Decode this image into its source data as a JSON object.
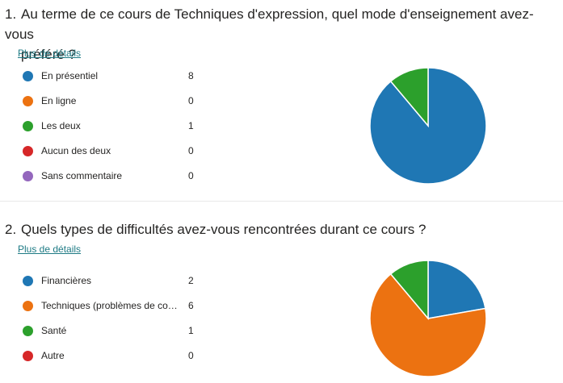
{
  "details_label": "Plus de détails",
  "questions": [
    {
      "number": "1.",
      "title_line1": "Au terme de ce cours de Techniques d'expression, quel mode d'enseignement avez-vous",
      "title_line2": "préféré ?"
    },
    {
      "number": "2.",
      "title_line1": "Quels types de difficultés avez-vous rencontrées durant ce cours ?"
    }
  ],
  "chart_data": [
    {
      "type": "pie",
      "categories": [
        "En présentiel",
        "En ligne",
        "Les deux",
        "Aucun des deux",
        "Sans commentaire"
      ],
      "values": [
        8,
        0,
        1,
        0,
        0
      ],
      "colors": [
        "#1f77b4",
        "#ec7211",
        "#2ca02c",
        "#d62728",
        "#9467bd"
      ],
      "legend": "left"
    },
    {
      "type": "pie",
      "categories": [
        "Financières",
        "Techniques (problèmes de con…",
        "Santé",
        "Autre"
      ],
      "values": [
        2,
        6,
        1,
        0
      ],
      "colors": [
        "#1f77b4",
        "#ec7211",
        "#2ca02c",
        "#d62728"
      ],
      "legend": "left"
    }
  ]
}
